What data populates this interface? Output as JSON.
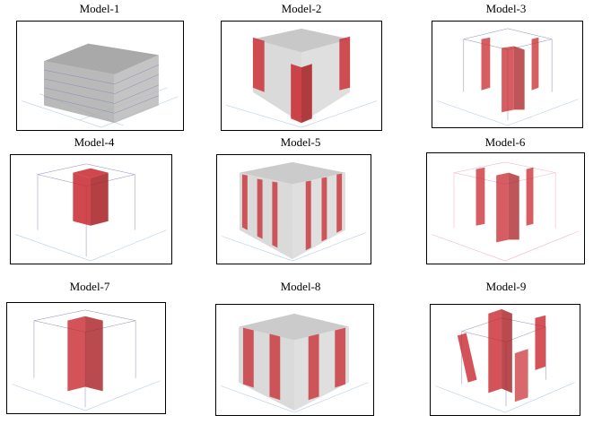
{
  "figure": {
    "panels": [
      {
        "label": "Model-1"
      },
      {
        "label": "Model-2"
      },
      {
        "label": "Model-3"
      },
      {
        "label": "Model-4"
      },
      {
        "label": "Model-5"
      },
      {
        "label": "Model-6"
      },
      {
        "label": "Model-7"
      },
      {
        "label": "Model-8"
      },
      {
        "label": "Model-9"
      }
    ],
    "colors": {
      "frame_line": "#8a8ab8",
      "ground_grid": "#b8cfe8",
      "slab_fill": "#9a9a9a",
      "shear_wall": "#c8282e",
      "panel_border": "#000000"
    }
  }
}
